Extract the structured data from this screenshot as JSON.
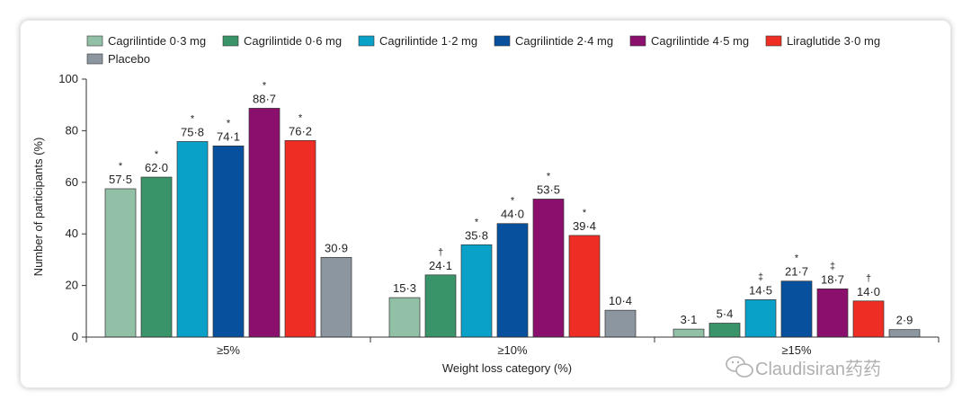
{
  "chart_data": {
    "type": "bar",
    "title": "",
    "xlabel": "Weight loss category (%)",
    "ylabel": "Number of participants (%)",
    "ylim": [
      0,
      100
    ],
    "yticks": [
      0,
      20,
      40,
      60,
      80,
      100
    ],
    "categories": [
      "≥5%",
      "≥10%",
      "≥15%"
    ],
    "legend_position": "top-left",
    "series": [
      {
        "name": "Cagrilintide 0·3 mg",
        "color": "#91c0a6",
        "values": [
          57.5,
          15.3,
          3.1
        ],
        "labels": [
          "57·5",
          "15·3",
          "3·1"
        ],
        "markers": [
          "*",
          "",
          ""
        ]
      },
      {
        "name": "Cagrilintide 0·6 mg",
        "color": "#3a9469",
        "values": [
          62.0,
          24.1,
          5.4
        ],
        "labels": [
          "62·0",
          "24·1",
          "5·4"
        ],
        "markers": [
          "*",
          "†",
          ""
        ]
      },
      {
        "name": "Cagrilintide 1·2 mg",
        "color": "#0aa1c8",
        "values": [
          75.8,
          35.8,
          14.5
        ],
        "labels": [
          "75·8",
          "35·8",
          "14·5"
        ],
        "markers": [
          "*",
          "*",
          "‡"
        ]
      },
      {
        "name": "Cagrilintide 2·4 mg",
        "color": "#06509d",
        "values": [
          74.1,
          44.0,
          21.7
        ],
        "labels": [
          "74·1",
          "44·0",
          "21·7"
        ],
        "markers": [
          "*",
          "*",
          "*"
        ]
      },
      {
        "name": "Cagrilintide 4·5 mg",
        "color": "#8b0f6d",
        "values": [
          88.7,
          53.5,
          18.7
        ],
        "labels": [
          "88·7",
          "53·5",
          "18·7"
        ],
        "markers": [
          "*",
          "*",
          "‡"
        ]
      },
      {
        "name": "Liraglutide 3·0 mg",
        "color": "#ee2e24",
        "values": [
          76.2,
          39.4,
          14.0
        ],
        "labels": [
          "76·2",
          "39·4",
          "14·0"
        ],
        "markers": [
          "*",
          "*",
          "†"
        ]
      },
      {
        "name": "Placebo",
        "color": "#8c96a1",
        "values": [
          30.9,
          10.4,
          2.9
        ],
        "labels": [
          "30·9",
          "10·4",
          "2·9"
        ],
        "markers": [
          "",
          "",
          ""
        ]
      }
    ]
  },
  "watermark": {
    "icon": "wechat-icon",
    "text": "Claudisiran药药"
  }
}
